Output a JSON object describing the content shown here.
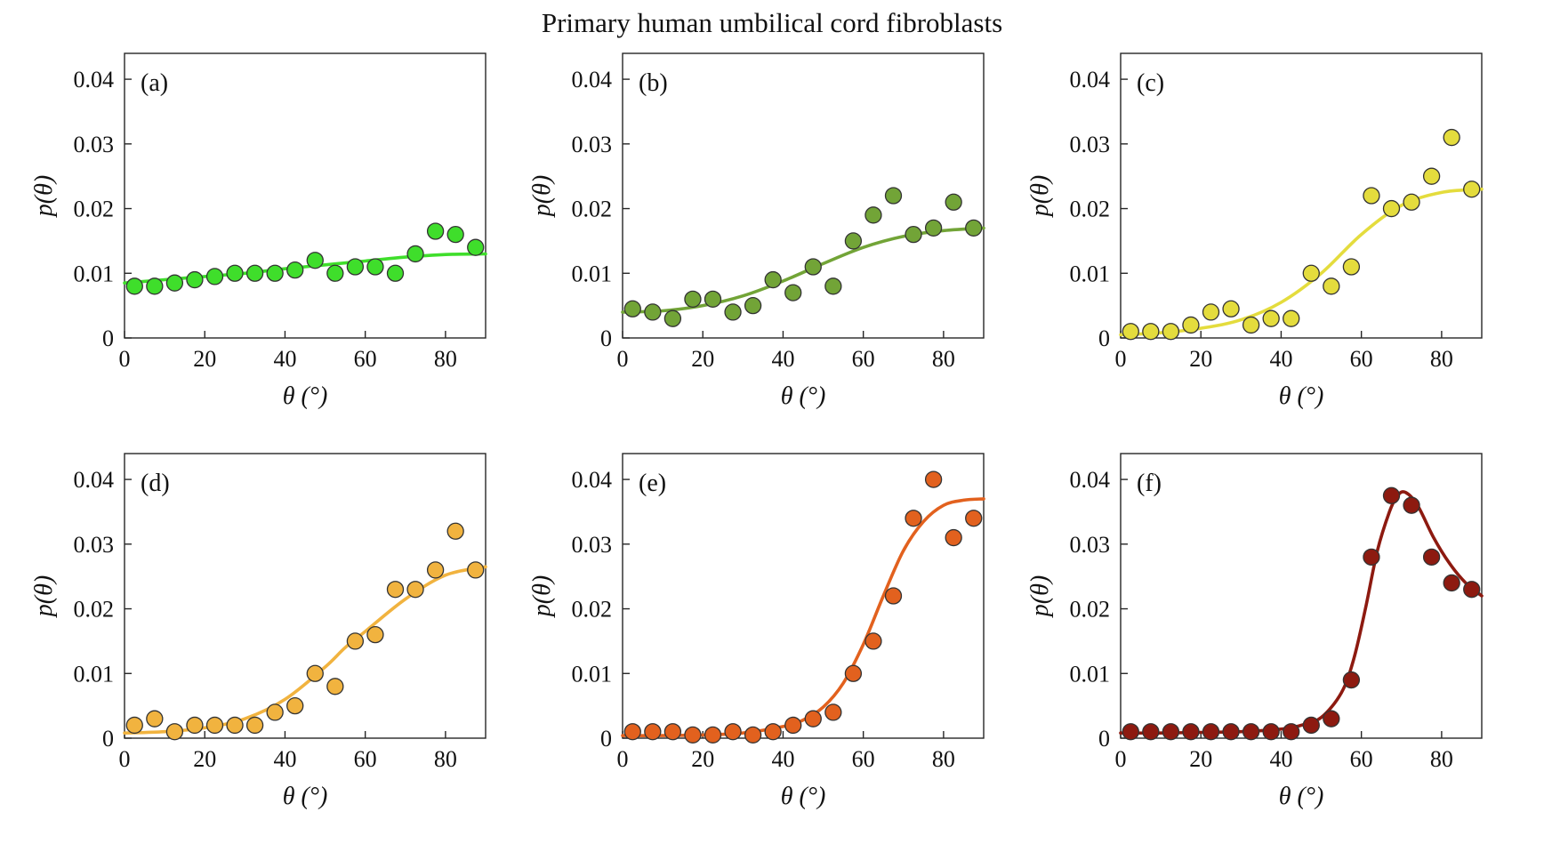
{
  "title": "Primary human umbilical cord fibroblasts",
  "layout": {
    "rows": 2,
    "cols": 3
  },
  "chart_data": [
    {
      "type": "scatter",
      "panel_label": "(a)",
      "xlabel": "θ (°)",
      "ylabel": "p(θ)",
      "xlim": [
        0,
        90
      ],
      "ylim": [
        0,
        0.044
      ],
      "xticks": [
        0,
        20,
        40,
        60,
        80
      ],
      "yticks": [
        0,
        0.01,
        0.02,
        0.03,
        0.04
      ],
      "color": "#3FDE2B",
      "marker_edge": "#333333",
      "x": [
        2.5,
        7.5,
        12.5,
        17.5,
        22.5,
        27.5,
        32.5,
        37.5,
        42.5,
        47.5,
        52.5,
        57.5,
        62.5,
        67.5,
        72.5,
        77.5,
        82.5,
        87.5
      ],
      "y": [
        0.008,
        0.008,
        0.0085,
        0.009,
        0.0095,
        0.01,
        0.01,
        0.01,
        0.0105,
        0.012,
        0.01,
        0.011,
        0.011,
        0.01,
        0.013,
        0.0165,
        0.016,
        0.014
      ],
      "fit_x": [
        0,
        10,
        20,
        30,
        40,
        50,
        60,
        70,
        80,
        90
      ],
      "fit_y": [
        0.0085,
        0.009,
        0.0095,
        0.01,
        0.0107,
        0.0113,
        0.0119,
        0.0125,
        0.0129,
        0.013
      ]
    },
    {
      "type": "scatter",
      "panel_label": "(b)",
      "xlabel": "θ (°)",
      "ylabel": "p(θ)",
      "xlim": [
        0,
        90
      ],
      "ylim": [
        0,
        0.044
      ],
      "xticks": [
        0,
        20,
        40,
        60,
        80
      ],
      "yticks": [
        0,
        0.01,
        0.02,
        0.03,
        0.04
      ],
      "color": "#72A437",
      "marker_edge": "#333333",
      "x": [
        2.5,
        7.5,
        12.5,
        17.5,
        22.5,
        27.5,
        32.5,
        37.5,
        42.5,
        47.5,
        52.5,
        57.5,
        62.5,
        67.5,
        72.5,
        77.5,
        82.5,
        87.5
      ],
      "y": [
        0.0045,
        0.004,
        0.003,
        0.006,
        0.006,
        0.004,
        0.005,
        0.009,
        0.007,
        0.011,
        0.008,
        0.015,
        0.019,
        0.022,
        0.016,
        0.017,
        0.021,
        0.017
      ],
      "fit_x": [
        0,
        10,
        20,
        30,
        40,
        50,
        60,
        70,
        80,
        90
      ],
      "fit_y": [
        0.004,
        0.0042,
        0.005,
        0.0065,
        0.0088,
        0.0115,
        0.014,
        0.0157,
        0.0166,
        0.017
      ]
    },
    {
      "type": "scatter",
      "panel_label": "(c)",
      "xlabel": "θ (°)",
      "ylabel": "p(θ)",
      "xlim": [
        0,
        90
      ],
      "ylim": [
        0,
        0.044
      ],
      "xticks": [
        0,
        20,
        40,
        60,
        80
      ],
      "yticks": [
        0,
        0.01,
        0.02,
        0.03,
        0.04
      ],
      "color": "#E4DC3D",
      "marker_edge": "#333333",
      "x": [
        2.5,
        7.5,
        12.5,
        17.5,
        22.5,
        27.5,
        32.5,
        37.5,
        42.5,
        47.5,
        52.5,
        57.5,
        62.5,
        67.5,
        72.5,
        77.5,
        82.5,
        87.5
      ],
      "y": [
        0.001,
        0.001,
        0.001,
        0.002,
        0.004,
        0.0045,
        0.002,
        0.003,
        0.003,
        0.01,
        0.008,
        0.011,
        0.022,
        0.02,
        0.021,
        0.025,
        0.031,
        0.023
      ],
      "fit_x": [
        0,
        10,
        20,
        30,
        40,
        50,
        60,
        70,
        80,
        90
      ],
      "fit_y": [
        0.0005,
        0.0008,
        0.0015,
        0.0028,
        0.0055,
        0.01,
        0.016,
        0.0205,
        0.0225,
        0.023
      ]
    },
    {
      "type": "scatter",
      "panel_label": "(d)",
      "xlabel": "θ (°)",
      "ylabel": "p(θ)",
      "xlim": [
        0,
        90
      ],
      "ylim": [
        0,
        0.044
      ],
      "xticks": [
        0,
        20,
        40,
        60,
        80
      ],
      "yticks": [
        0,
        0.01,
        0.02,
        0.03,
        0.04
      ],
      "color": "#F1B33F",
      "marker_edge": "#333333",
      "x": [
        2.5,
        7.5,
        12.5,
        17.5,
        22.5,
        27.5,
        32.5,
        37.5,
        42.5,
        47.5,
        52.5,
        57.5,
        62.5,
        67.5,
        72.5,
        77.5,
        82.5,
        87.5
      ],
      "y": [
        0.002,
        0.003,
        0.001,
        0.002,
        0.002,
        0.002,
        0.002,
        0.004,
        0.005,
        0.01,
        0.008,
        0.015,
        0.016,
        0.023,
        0.023,
        0.026,
        0.032,
        0.026
      ],
      "fit_x": [
        0,
        10,
        20,
        30,
        40,
        50,
        55,
        60,
        70,
        80,
        90
      ],
      "fit_y": [
        0.0008,
        0.001,
        0.0016,
        0.003,
        0.006,
        0.011,
        0.014,
        0.0165,
        0.0215,
        0.0252,
        0.0265
      ]
    },
    {
      "type": "scatter",
      "panel_label": "(e)",
      "xlabel": "θ (°)",
      "ylabel": "p(θ)",
      "xlim": [
        0,
        90
      ],
      "ylim": [
        0,
        0.044
      ],
      "xticks": [
        0,
        20,
        40,
        60,
        80
      ],
      "yticks": [
        0,
        0.01,
        0.02,
        0.03,
        0.04
      ],
      "color": "#E2611E",
      "marker_edge": "#333333",
      "x": [
        2.5,
        7.5,
        12.5,
        17.5,
        22.5,
        27.5,
        32.5,
        37.5,
        42.5,
        47.5,
        52.5,
        57.5,
        62.5,
        67.5,
        72.5,
        77.5,
        82.5,
        87.5
      ],
      "y": [
        0.001,
        0.001,
        0.001,
        0.0005,
        0.0005,
        0.001,
        0.0005,
        0.001,
        0.002,
        0.003,
        0.004,
        0.01,
        0.015,
        0.022,
        0.034,
        0.04,
        0.031,
        0.034
      ],
      "fit_x": [
        0,
        10,
        20,
        30,
        40,
        45,
        50,
        55,
        60,
        65,
        70,
        75,
        80,
        85,
        90
      ],
      "fit_y": [
        0.0004,
        0.0004,
        0.0005,
        0.0008,
        0.0018,
        0.0028,
        0.0048,
        0.0085,
        0.0145,
        0.022,
        0.029,
        0.0335,
        0.036,
        0.0368,
        0.037
      ]
    },
    {
      "type": "scatter",
      "panel_label": "(f)",
      "xlabel": "θ (°)",
      "ylabel": "p(θ)",
      "xlim": [
        0,
        90
      ],
      "ylim": [
        0,
        0.044
      ],
      "xticks": [
        0,
        20,
        40,
        60,
        80
      ],
      "yticks": [
        0,
        0.01,
        0.02,
        0.03,
        0.04
      ],
      "color": "#8D1A10",
      "marker_edge": "#333333",
      "x": [
        2.5,
        7.5,
        12.5,
        17.5,
        22.5,
        27.5,
        32.5,
        37.5,
        42.5,
        47.5,
        52.5,
        57.5,
        62.5,
        67.5,
        72.5,
        77.5,
        82.5,
        87.5
      ],
      "y": [
        0.001,
        0.001,
        0.001,
        0.001,
        0.001,
        0.001,
        0.001,
        0.001,
        0.001,
        0.002,
        0.003,
        0.009,
        0.028,
        0.0375,
        0.036,
        0.028,
        0.024,
        0.023
      ],
      "fit_x": [
        0,
        10,
        20,
        30,
        40,
        45,
        50,
        55,
        58,
        61,
        64,
        67,
        69,
        71,
        74,
        78,
        82,
        86,
        90
      ],
      "fit_y": [
        0.0008,
        0.0008,
        0.0009,
        0.001,
        0.0014,
        0.002,
        0.0032,
        0.007,
        0.012,
        0.02,
        0.029,
        0.035,
        0.0375,
        0.038,
        0.036,
        0.031,
        0.027,
        0.024,
        0.022
      ]
    }
  ]
}
